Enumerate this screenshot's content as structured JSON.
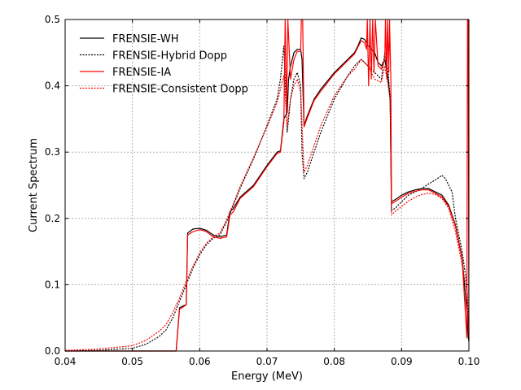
{
  "chart_data": {
    "type": "line",
    "title": "",
    "xlabel": "Energy (MeV)",
    "ylabel": "Current Spectrum",
    "xlim": [
      0.04,
      0.1
    ],
    "ylim": [
      0.0,
      0.5
    ],
    "xticks": [
      "0.04",
      "0.05",
      "0.06",
      "0.07",
      "0.08",
      "0.09",
      "0.10"
    ],
    "yticks": [
      "0.0",
      "0.1",
      "0.2",
      "0.3",
      "0.4",
      "0.5"
    ],
    "grid": true,
    "legend_position": "top-left",
    "series": [
      {
        "name": "FRENSIE-WH",
        "color": "#000000",
        "dash": "solid",
        "x": [
          0.04,
          0.045,
          0.05,
          0.053,
          0.055,
          0.056,
          0.0565,
          0.057,
          0.0575,
          0.058,
          0.0582,
          0.059,
          0.06,
          0.061,
          0.062,
          0.063,
          0.064,
          0.0645,
          0.065,
          0.066,
          0.068,
          0.07,
          0.0715,
          0.072,
          0.0725,
          0.073,
          0.0732,
          0.0735,
          0.074,
          0.0745,
          0.075,
          0.0752,
          0.0755,
          0.076,
          0.077,
          0.078,
          0.08,
          0.082,
          0.083,
          0.0835,
          0.084,
          0.0845,
          0.085,
          0.0852,
          0.0855,
          0.086,
          0.0865,
          0.087,
          0.0875,
          0.088,
          0.0883,
          0.0885,
          0.089,
          0.09,
          0.091,
          0.092,
          0.093,
          0.094,
          0.095,
          0.096,
          0.097,
          0.098,
          0.099,
          0.0997,
          0.0999,
          0.1
        ],
        "y": [
          0.0,
          0.0,
          0.0,
          0.0,
          0.0,
          0.0,
          0.0,
          0.065,
          0.068,
          0.07,
          0.178,
          0.184,
          0.185,
          0.182,
          0.175,
          0.172,
          0.175,
          0.21,
          0.215,
          0.232,
          0.25,
          0.28,
          0.3,
          0.302,
          0.35,
          0.36,
          0.41,
          0.43,
          0.45,
          0.455,
          0.455,
          0.44,
          0.34,
          0.355,
          0.38,
          0.395,
          0.42,
          0.44,
          0.45,
          0.46,
          0.472,
          0.47,
          0.46,
          0.46,
          0.455,
          0.45,
          0.435,
          0.43,
          0.44,
          0.41,
          0.378,
          0.225,
          0.228,
          0.235,
          0.24,
          0.243,
          0.245,
          0.245,
          0.24,
          0.235,
          0.22,
          0.19,
          0.14,
          0.06,
          0.02,
          0.015
        ]
      },
      {
        "name": "FRENSIE-Hybrid Dopp",
        "color": "#000000",
        "dash": "dotted",
        "x": [
          0.04,
          0.045,
          0.05,
          0.052,
          0.054,
          0.055,
          0.056,
          0.057,
          0.058,
          0.059,
          0.06,
          0.061,
          0.062,
          0.063,
          0.064,
          0.065,
          0.066,
          0.068,
          0.07,
          0.0715,
          0.072,
          0.0725,
          0.073,
          0.0732,
          0.0735,
          0.074,
          0.0745,
          0.075,
          0.0752,
          0.0755,
          0.076,
          0.077,
          0.078,
          0.08,
          0.082,
          0.083,
          0.084,
          0.085,
          0.086,
          0.087,
          0.0875,
          0.088,
          0.0883,
          0.0885,
          0.089,
          0.09,
          0.091,
          0.092,
          0.093,
          0.094,
          0.095,
          0.096,
          0.0965,
          0.097,
          0.0975,
          0.098,
          0.099,
          0.0997,
          0.1
        ],
        "y": [
          0.0,
          0.001,
          0.004,
          0.01,
          0.022,
          0.032,
          0.05,
          0.075,
          0.1,
          0.125,
          0.145,
          0.16,
          0.17,
          0.175,
          0.195,
          0.22,
          0.245,
          0.29,
          0.34,
          0.38,
          0.41,
          0.46,
          0.33,
          0.35,
          0.38,
          0.41,
          0.42,
          0.4,
          0.3,
          0.26,
          0.27,
          0.3,
          0.33,
          0.38,
          0.415,
          0.43,
          0.44,
          0.43,
          0.42,
          0.41,
          0.45,
          0.42,
          0.38,
          0.212,
          0.215,
          0.225,
          0.235,
          0.24,
          0.245,
          0.252,
          0.258,
          0.265,
          0.26,
          0.25,
          0.24,
          0.2,
          0.15,
          0.1,
          0.03
        ]
      },
      {
        "name": "FRENSIE-IA",
        "color": "#ff0000",
        "dash": "solid",
        "x": [
          0.04,
          0.045,
          0.05,
          0.053,
          0.055,
          0.056,
          0.0565,
          0.057,
          0.0575,
          0.058,
          0.0582,
          0.059,
          0.06,
          0.061,
          0.062,
          0.063,
          0.064,
          0.0645,
          0.065,
          0.066,
          0.068,
          0.07,
          0.0715,
          0.072,
          0.0725,
          0.0727,
          0.0729,
          0.0731,
          0.0735,
          0.074,
          0.0745,
          0.075,
          0.0751,
          0.0753,
          0.0755,
          0.076,
          0.077,
          0.078,
          0.08,
          0.082,
          0.083,
          0.084,
          0.0845,
          0.0848,
          0.0849,
          0.0851,
          0.0853,
          0.0855,
          0.0857,
          0.0859,
          0.0861,
          0.0865,
          0.087,
          0.0875,
          0.0876,
          0.0878,
          0.0879,
          0.0881,
          0.0882,
          0.0884,
          0.0885,
          0.089,
          0.09,
          0.091,
          0.092,
          0.093,
          0.094,
          0.095,
          0.096,
          0.097,
          0.098,
          0.099,
          0.0997,
          0.0998,
          0.0999,
          0.1
        ],
        "y": [
          0.0,
          0.0,
          0.0,
          0.0,
          0.0,
          0.0,
          0.0,
          0.063,
          0.066,
          0.07,
          0.175,
          0.18,
          0.183,
          0.18,
          0.172,
          0.17,
          0.172,
          0.205,
          0.21,
          0.23,
          0.248,
          0.278,
          0.298,
          0.3,
          0.345,
          0.5,
          0.36,
          0.5,
          0.41,
          0.44,
          0.452,
          0.452,
          0.5,
          0.5,
          0.338,
          0.352,
          0.378,
          0.392,
          0.418,
          0.438,
          0.448,
          0.468,
          0.465,
          0.455,
          0.5,
          0.4,
          0.5,
          0.41,
          0.5,
          0.42,
          0.5,
          0.43,
          0.425,
          0.44,
          0.5,
          0.41,
          0.5,
          0.42,
          0.5,
          0.41,
          0.222,
          0.225,
          0.232,
          0.238,
          0.241,
          0.243,
          0.243,
          0.238,
          0.232,
          0.218,
          0.188,
          0.138,
          0.02,
          0.5,
          0.5,
          0.015
        ]
      },
      {
        "name": "FRENSIE-Consistent Dopp",
        "color": "#ff0000",
        "dash": "dotted",
        "x": [
          0.04,
          0.045,
          0.05,
          0.052,
          0.054,
          0.055,
          0.056,
          0.057,
          0.058,
          0.059,
          0.06,
          0.061,
          0.062,
          0.063,
          0.064,
          0.065,
          0.066,
          0.068,
          0.07,
          0.0715,
          0.072,
          0.0725,
          0.073,
          0.0735,
          0.074,
          0.0745,
          0.075,
          0.0755,
          0.076,
          0.077,
          0.078,
          0.08,
          0.082,
          0.083,
          0.084,
          0.085,
          0.086,
          0.087,
          0.0875,
          0.088,
          0.0883,
          0.0885,
          0.089,
          0.09,
          0.091,
          0.092,
          0.093,
          0.094,
          0.095,
          0.096,
          0.097,
          0.098,
          0.099,
          0.0997,
          0.1
        ],
        "y": [
          0.001,
          0.003,
          0.008,
          0.016,
          0.03,
          0.04,
          0.058,
          0.08,
          0.105,
          0.128,
          0.148,
          0.163,
          0.172,
          0.178,
          0.198,
          0.222,
          0.248,
          0.292,
          0.338,
          0.375,
          0.395,
          0.415,
          0.34,
          0.38,
          0.4,
          0.41,
          0.39,
          0.27,
          0.28,
          0.31,
          0.34,
          0.385,
          0.415,
          0.425,
          0.44,
          0.43,
          0.41,
          0.405,
          0.43,
          0.4,
          0.38,
          0.205,
          0.21,
          0.218,
          0.226,
          0.232,
          0.236,
          0.238,
          0.236,
          0.23,
          0.215,
          0.18,
          0.13,
          0.09,
          0.02
        ]
      }
    ]
  }
}
